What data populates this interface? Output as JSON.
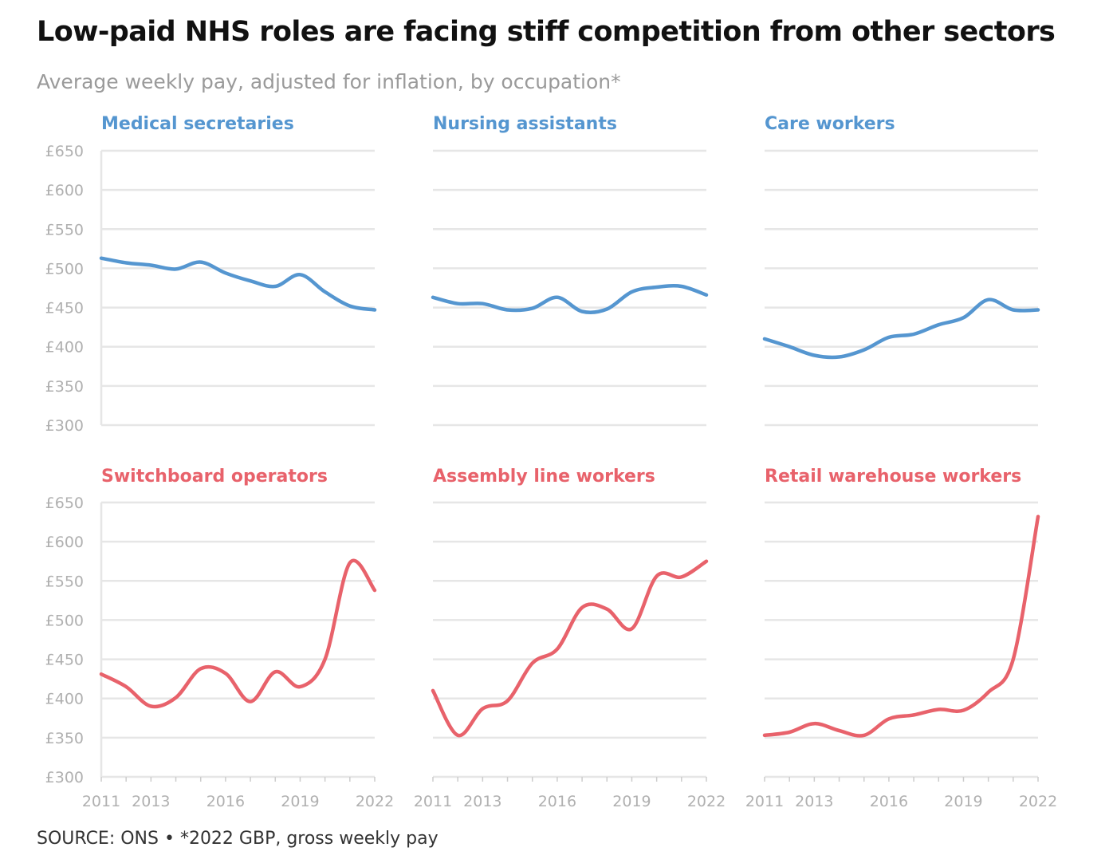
{
  "title": "Low-paid NHS roles are facing stiff competition from other sectors",
  "subtitle": "Average weekly pay, adjusted for inflation, by occupation*",
  "source": "SOURCE: ONS • *2022 GBP, gross weekly pay",
  "colors": {
    "nhs": "#5596d0",
    "other": "#e8626b",
    "grid": "#e6e6e6",
    "tick_text": "#b0b0b0",
    "title_text": "#111111",
    "subtitle_text": "#9a9a9a"
  },
  "chart_data": [
    {
      "type": "line",
      "title": "Medical secretaries",
      "group": "nhs",
      "x": [
        2011,
        2012,
        2013,
        2014,
        2015,
        2016,
        2017,
        2018,
        2019,
        2020,
        2021,
        2022
      ],
      "values": [
        513,
        507,
        504,
        499,
        508,
        494,
        484,
        477,
        492,
        470,
        452,
        447
      ],
      "ylim": [
        300,
        650
      ],
      "yticks": [
        "£650",
        "£600",
        "£550",
        "£500",
        "£450",
        "£400",
        "£350",
        "£300"
      ],
      "xticks": [
        "2011",
        "2013",
        "2016",
        "2019",
        "2022"
      ]
    },
    {
      "type": "line",
      "title": "Nursing assistants",
      "group": "nhs",
      "x": [
        2011,
        2012,
        2013,
        2014,
        2015,
        2016,
        2017,
        2018,
        2019,
        2020,
        2021,
        2022
      ],
      "values": [
        463,
        455,
        455,
        447,
        449,
        463,
        445,
        448,
        470,
        476,
        477,
        466
      ],
      "ylim": [
        300,
        650
      ],
      "xticks": [
        "2011",
        "2013",
        "2016",
        "2019",
        "2022"
      ]
    },
    {
      "type": "line",
      "title": "Care workers",
      "group": "nhs",
      "x": [
        2011,
        2012,
        2013,
        2014,
        2015,
        2016,
        2017,
        2018,
        2019,
        2020,
        2021,
        2022
      ],
      "values": [
        410,
        400,
        389,
        387,
        396,
        412,
        416,
        428,
        437,
        460,
        447,
        447
      ],
      "ylim": [
        300,
        650
      ],
      "xticks": [
        "2011",
        "2013",
        "2016",
        "2019",
        "2022"
      ]
    },
    {
      "type": "line",
      "title": "Switchboard operators",
      "group": "other",
      "x": [
        2011,
        2012,
        2013,
        2014,
        2015,
        2016,
        2017,
        2018,
        2019,
        2020,
        2021,
        2022
      ],
      "values": [
        431,
        415,
        390,
        401,
        438,
        432,
        396,
        434,
        415,
        450,
        573,
        538
      ],
      "ylim": [
        300,
        650
      ],
      "yticks": [
        "£650",
        "£600",
        "£550",
        "£500",
        "£450",
        "£400",
        "£350",
        "£300"
      ],
      "xticks": [
        "2011",
        "2013",
        "2016",
        "2019",
        "2022"
      ]
    },
    {
      "type": "line",
      "title": "Assembly line workers",
      "group": "other",
      "x": [
        2011,
        2012,
        2013,
        2014,
        2015,
        2016,
        2017,
        2018,
        2019,
        2020,
        2021,
        2022
      ],
      "values": [
        410,
        353,
        387,
        397,
        445,
        463,
        516,
        514,
        489,
        556,
        555,
        575
      ],
      "ylim": [
        300,
        650
      ],
      "xticks": [
        "2011",
        "2013",
        "2016",
        "2019",
        "2022"
      ]
    },
    {
      "type": "line",
      "title": "Retail warehouse workers",
      "group": "other",
      "x": [
        2011,
        2012,
        2013,
        2014,
        2015,
        2016,
        2017,
        2018,
        2019,
        2020,
        2021,
        2022
      ],
      "values": [
        353,
        357,
        368,
        359,
        353,
        374,
        379,
        386,
        385,
        408,
        450,
        632
      ],
      "ylim": [
        300,
        650
      ],
      "xticks": [
        "2011",
        "2013",
        "2016",
        "2019",
        "2022"
      ]
    }
  ]
}
